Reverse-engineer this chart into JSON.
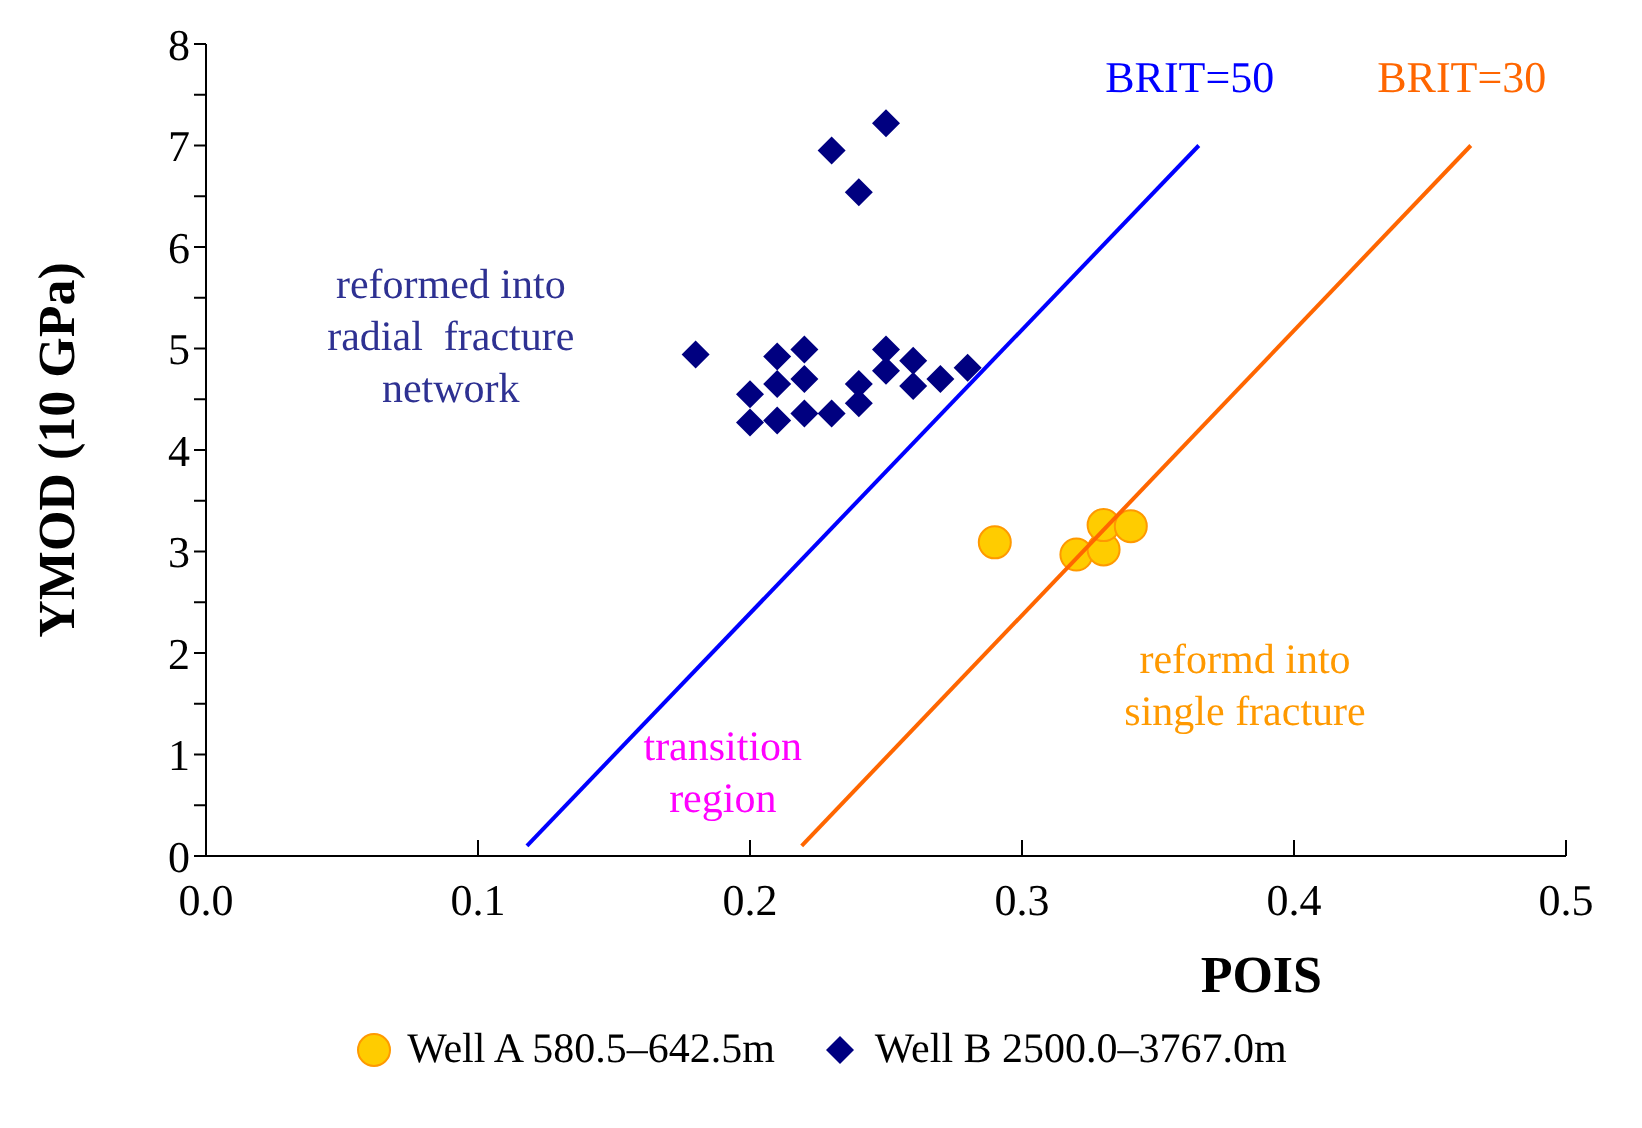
{
  "chart_data": {
    "type": "scatter",
    "xlabel": "POIS",
    "ylabel": "YMOD (10 GPa)",
    "xlim": [
      0,
      0.5
    ],
    "ylim": [
      0,
      8
    ],
    "xticks": [
      {
        "value": 0,
        "label": "0.0"
      },
      {
        "value": 0.1,
        "label": "0.1"
      },
      {
        "value": 0.2,
        "label": "0.2"
      },
      {
        "value": 0.3,
        "label": "0.3"
      },
      {
        "value": 0.4,
        "label": "0.4"
      },
      {
        "value": 0.5,
        "label": "0.5"
      }
    ],
    "yticks": [
      0,
      {
        "value": 0.5,
        "label": null
      },
      1,
      {
        "value": 1.5,
        "label": null
      },
      2,
      {
        "value": 2.5,
        "label": null
      },
      3,
      {
        "value": 3.5,
        "label": null
      },
      4,
      {
        "value": 4.5,
        "label": null
      },
      5,
      {
        "value": 5.5,
        "label": null
      },
      6,
      {
        "value": 6.5,
        "label": null
      },
      7,
      {
        "value": 7.5,
        "label": null
      },
      8
    ],
    "grid": false,
    "legend": "bottom",
    "series": [
      {
        "name": "Well A 580.5–642.5m",
        "color": "#ffcc00",
        "marker": "circle",
        "x": [
          0.29,
          0.32,
          0.33,
          0.33,
          0.34
        ],
        "values": [
          3.09,
          2.97,
          3.02,
          3.26,
          3.25
        ]
      },
      {
        "name": "Well B 2500.0–3767.0m",
        "color": "#000080",
        "marker": "diamond",
        "x": [
          0.18,
          0.2,
          0.2,
          0.21,
          0.21,
          0.21,
          0.22,
          0.22,
          0.22,
          0.23,
          0.23,
          0.24,
          0.24,
          0.24,
          0.25,
          0.25,
          0.25,
          0.26,
          0.26,
          0.27,
          0.28
        ],
        "values": [
          4.94,
          4.55,
          4.27,
          4.92,
          4.65,
          4.29,
          4.99,
          4.7,
          4.36,
          6.95,
          4.36,
          6.54,
          4.65,
          4.46,
          7.22,
          4.99,
          4.78,
          4.88,
          4.63,
          4.7,
          4.81
        ]
      },
      {
        "name": "BRIT=50",
        "type": "line",
        "color": "#0000ff",
        "marker": "none",
        "x": [
          0.118,
          0.365
        ],
        "values": [
          0.1,
          7.0
        ]
      },
      {
        "name": "BRIT=30",
        "type": "line",
        "color": "#ff6600",
        "marker": "none",
        "x": [
          0.219,
          0.465
        ],
        "values": [
          0.1,
          7.0
        ]
      }
    ],
    "annotations": [
      "reformed into\nradial  fracture\nnetwork",
      "transition\nregion",
      "reformd into\nsingle fracture"
    ]
  }
}
